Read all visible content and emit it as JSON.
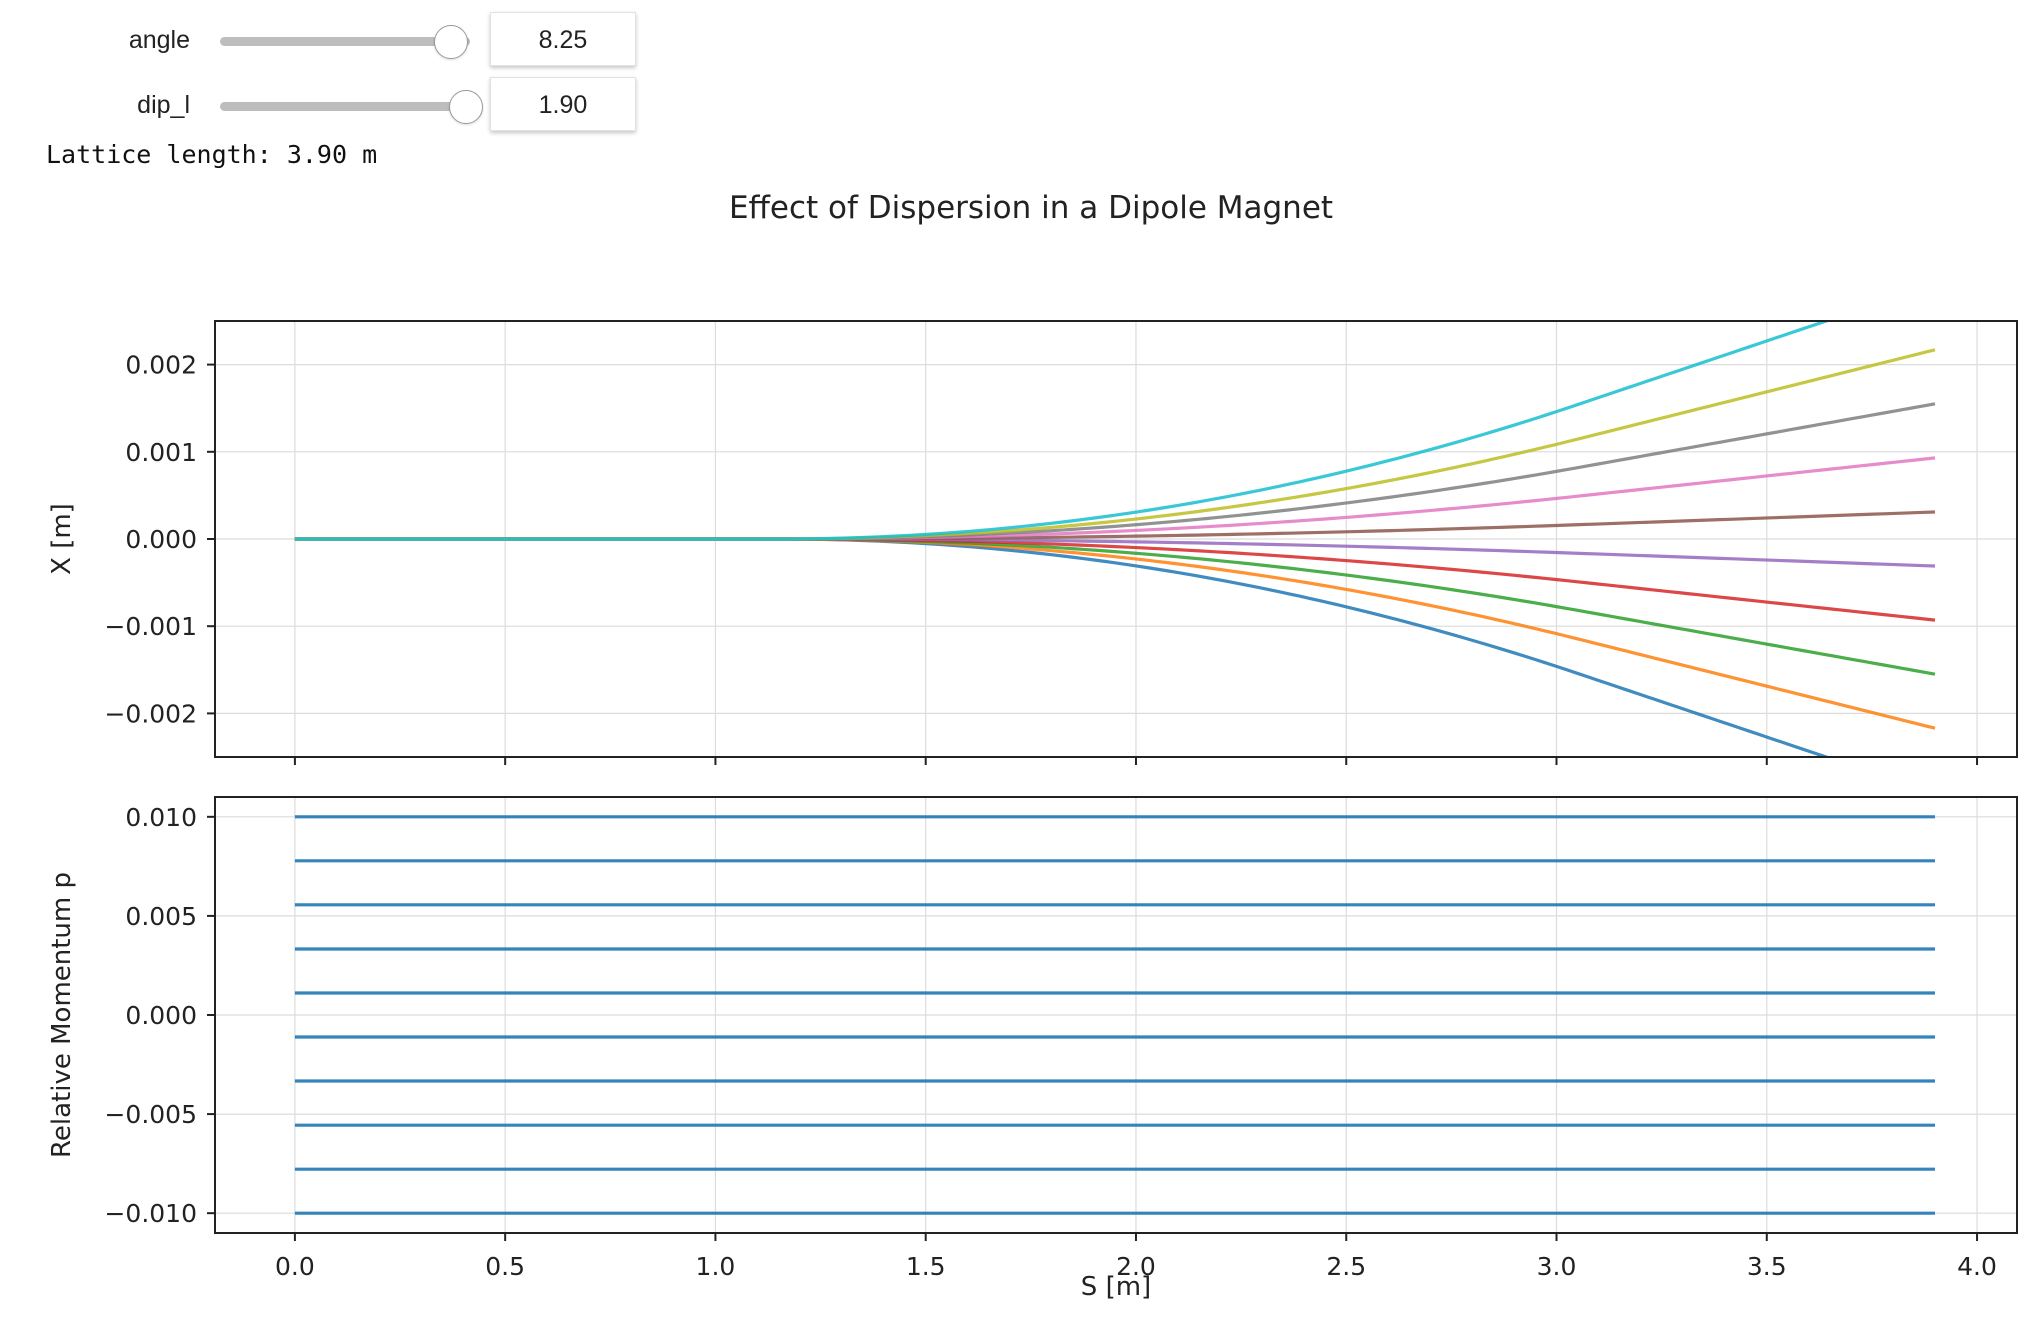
{
  "widgets": {
    "angle": {
      "label": "angle",
      "value": "8.25",
      "fraction": 0.92
    },
    "dip_l": {
      "label": "dip_l",
      "value": "1.90",
      "fraction": 0.98
    }
  },
  "lattice_text": "Lattice length: 3.90 m",
  "chart_data": {
    "title": "Effect of Dispersion in a Dipole Magnet",
    "type": "line",
    "grid": true,
    "shared_x": {
      "label": "S [m]",
      "lim": [
        -0.19,
        4.095
      ],
      "ticks": [
        0.0,
        0.5,
        1.0,
        1.5,
        2.0,
        2.5,
        3.0,
        3.5,
        4.0
      ],
      "tick_labels": [
        "0.0",
        "0.5",
        "1.0",
        "1.5",
        "2.0",
        "2.5",
        "3.0",
        "3.5",
        "4.0"
      ]
    },
    "dipole": {
      "start": 1.15,
      "end": 3.05
    },
    "s_end": 3.9,
    "top": {
      "ylabel": "X [m]",
      "ylim": [
        -0.0025,
        0.0025
      ],
      "yticks": [
        -0.002,
        -0.001,
        0.0,
        0.001,
        0.002
      ],
      "ytick_labels": [
        "−0.002",
        "−0.001",
        "0.000",
        "0.001",
        "0.002"
      ],
      "series": [
        {
          "color": "#1f77b4",
          "p": -0.01,
          "x_end": -0.00292
        },
        {
          "color": "#ff7f0e",
          "p": -0.00778,
          "x_end": -0.00217
        },
        {
          "color": "#2ca02c",
          "p": -0.00556,
          "x_end": -0.00155
        },
        {
          "color": "#d62728",
          "p": -0.00333,
          "x_end": -0.00093
        },
        {
          "color": "#9467bd",
          "p": -0.00111,
          "x_end": -0.00031
        },
        {
          "color": "#8c564b",
          "p": 0.00111,
          "x_end": 0.00031
        },
        {
          "color": "#e377c2",
          "p": 0.00333,
          "x_end": 0.00093
        },
        {
          "color": "#7f7f7f",
          "p": 0.00556,
          "x_end": 0.00155
        },
        {
          "color": "#bcbd22",
          "p": 0.00778,
          "x_end": 0.00217
        },
        {
          "color": "#17becf",
          "p": 0.01,
          "x_end": 0.00292
        }
      ]
    },
    "bottom": {
      "ylabel": "Relative Momentum p",
      "ylim": [
        -0.011,
        0.011
      ],
      "yticks": [
        -0.01,
        -0.005,
        0.0,
        0.005,
        0.01
      ],
      "ytick_labels": [
        "−0.010",
        "−0.005",
        "0.000",
        "0.005",
        "0.010"
      ],
      "line_color": "#1f77b4",
      "p_values": [
        -0.01,
        -0.00778,
        -0.00556,
        -0.00333,
        -0.00111,
        0.00111,
        0.00333,
        0.00556,
        0.00778,
        0.01
      ]
    }
  }
}
